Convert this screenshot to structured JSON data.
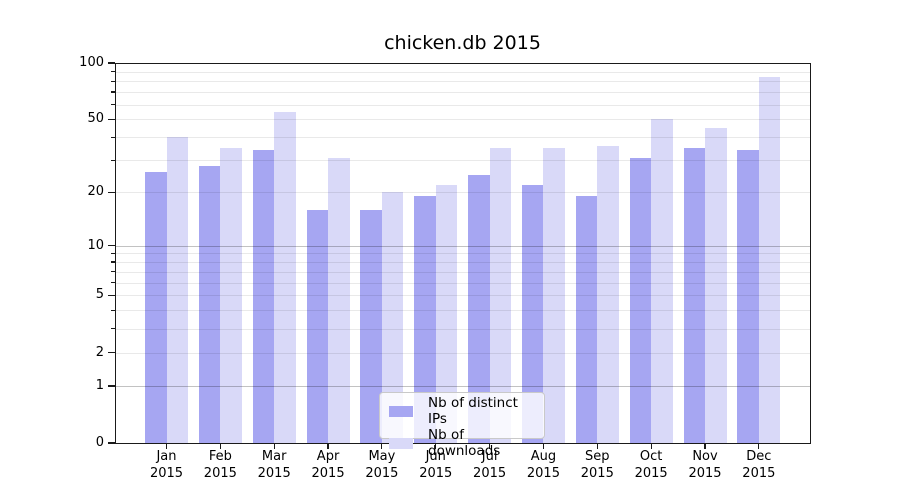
{
  "chart_data": {
    "type": "bar",
    "title": "chicken.db 2015",
    "categories": [
      "Jan 2015",
      "Feb 2015",
      "Mar 2015",
      "Apr 2015",
      "May 2015",
      "Jun 2015",
      "Jul 2015",
      "Aug 2015",
      "Sep 2015",
      "Oct 2015",
      "Nov 2015",
      "Dec 2015"
    ],
    "series": [
      {
        "name": "Nb of distinct IPs",
        "color": "#a6a6f2",
        "values": [
          26,
          28,
          34,
          16,
          16,
          19,
          25,
          22,
          19,
          31,
          35,
          34
        ]
      },
      {
        "name": "Nb of downloads",
        "color": "#d9d9f8",
        "values": [
          40,
          35,
          55,
          31,
          20,
          22,
          35,
          35,
          36,
          50,
          45,
          84
        ]
      }
    ],
    "xlabel": "",
    "ylabel": "",
    "y_scale": "log1p",
    "ylim": [
      0,
      100
    ],
    "y_tick_labels": [
      0,
      1,
      2,
      5,
      10,
      20,
      50,
      100
    ],
    "y_gridlines_major": [
      1,
      10
    ],
    "y_gridlines_minor": [
      2,
      3,
      4,
      5,
      6,
      7,
      8,
      9,
      20,
      30,
      40,
      50,
      60,
      70,
      80,
      90
    ],
    "y_minor_ticks": [
      3,
      4,
      6,
      7,
      8,
      9,
      30,
      40,
      60,
      70,
      80,
      90
    ],
    "grid": "horizontal",
    "legend_position": "lower center",
    "legend_labels": [
      "Nb of distinct IPs",
      "Nb of downloads"
    ]
  }
}
